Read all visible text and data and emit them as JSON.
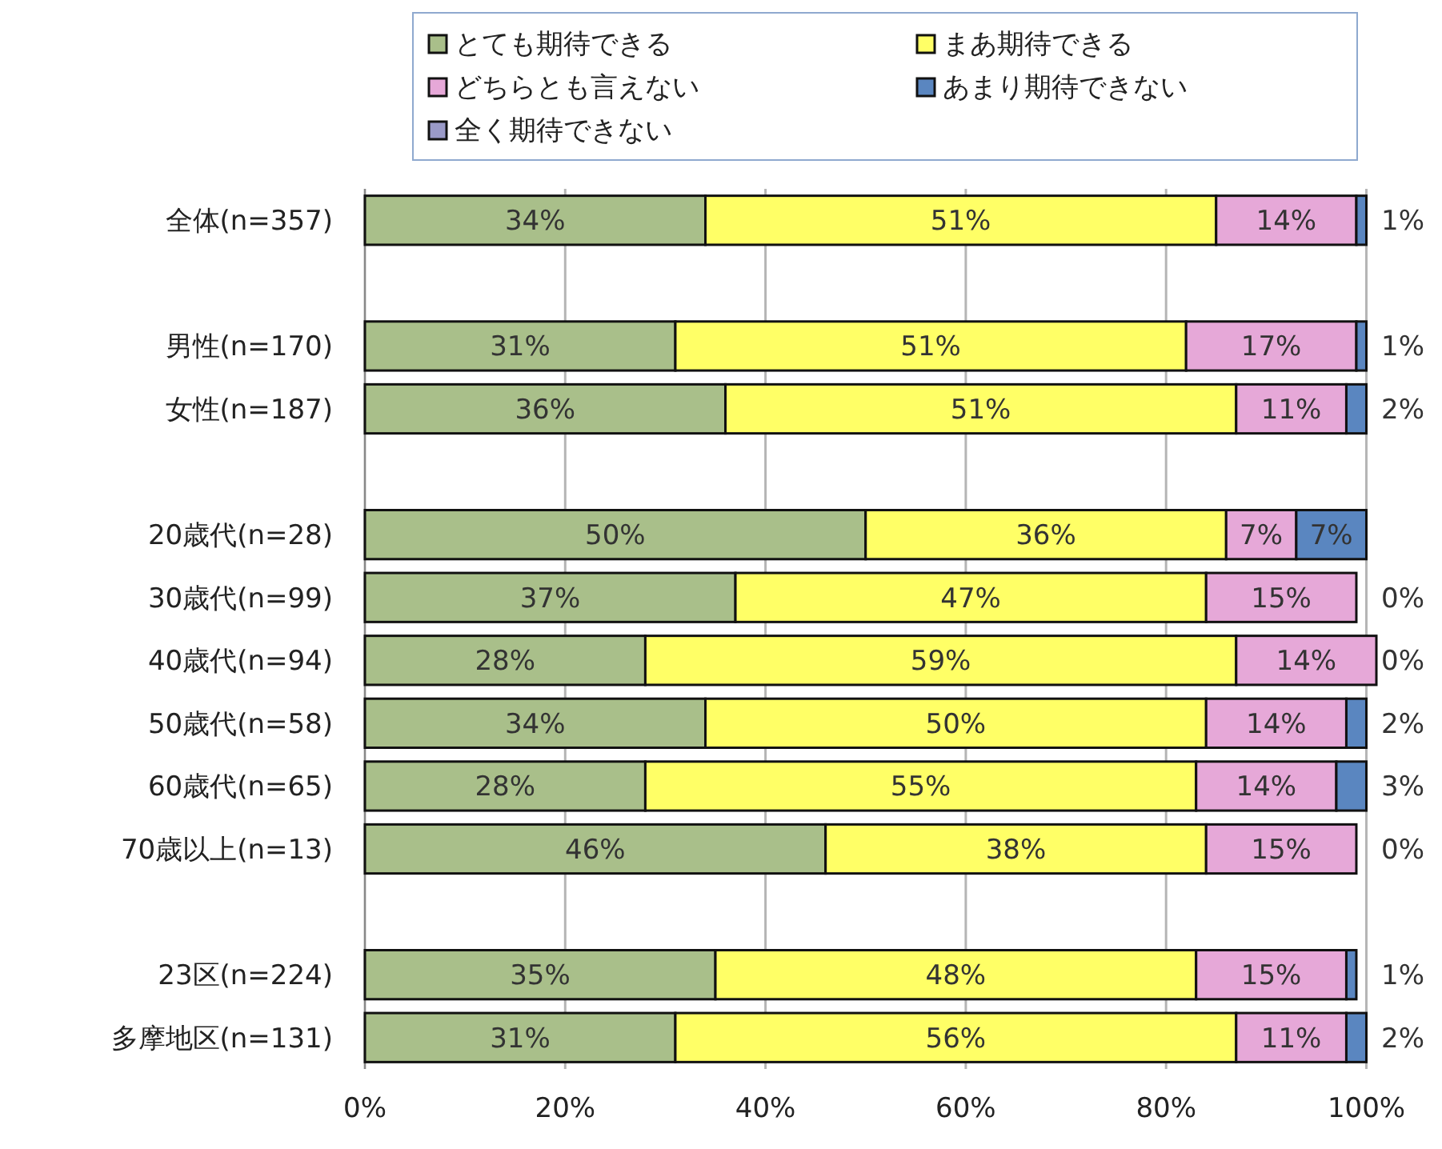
{
  "chart_data": {
    "type": "bar",
    "orientation": "horizontal",
    "stacked": true,
    "categories": [
      "全体(n=357)",
      null,
      "男性(n=170)",
      "女性(n=187)",
      null,
      "20歳代(n=28)",
      "30歳代(n=99)",
      "40歳代(n=94)",
      "50歳代(n=58)",
      "60歳代(n=65)",
      "70歳以上(n=13)",
      null,
      "23区(n=224)",
      "多摩地区(n=131)"
    ],
    "series": [
      {
        "name": "とても期待できる",
        "color": "#a9bf8a",
        "values": [
          34,
          null,
          31,
          36,
          null,
          50,
          37,
          28,
          34,
          28,
          46,
          null,
          35,
          31
        ],
        "value_labels": [
          "34%",
          null,
          "31%",
          "36%",
          null,
          "50%",
          "37%",
          "28%",
          "34%",
          "28%",
          "46%",
          null,
          "35%",
          "31%"
        ]
      },
      {
        "name": "まあ期待できる",
        "color": "#ffff66",
        "values": [
          51,
          null,
          51,
          51,
          null,
          36,
          47,
          59,
          50,
          55,
          38,
          null,
          48,
          56
        ],
        "value_labels": [
          "51%",
          null,
          "51%",
          "51%",
          null,
          "36%",
          "47%",
          "59%",
          "50%",
          "55%",
          "38%",
          null,
          "48%",
          "56%"
        ]
      },
      {
        "name": "どちらとも言えない",
        "color": "#e6a8d8",
        "values": [
          14,
          null,
          17,
          11,
          null,
          7,
          15,
          14,
          14,
          14,
          15,
          null,
          15,
          11
        ],
        "value_labels": [
          "14%",
          null,
          "17%",
          "11%",
          null,
          "7%",
          "15%",
          "14%",
          "14%",
          "14%",
          "15%",
          null,
          "15%",
          "11%"
        ]
      },
      {
        "name": "あまり期待できない",
        "color": "#5a86c0",
        "values": [
          1,
          null,
          1,
          2,
          null,
          7,
          0,
          0,
          2,
          3,
          0,
          null,
          1,
          2
        ],
        "value_labels": [
          "1%",
          null,
          "1%",
          "2%",
          null,
          "7%",
          "0%",
          "0%",
          "2%",
          "3%",
          "0%",
          null,
          "1%",
          "2%"
        ]
      },
      {
        "name": "全く期待できない",
        "color": "#9a9ac8",
        "values": [
          0,
          null,
          0,
          0,
          null,
          0,
          0,
          0,
          0,
          0,
          0,
          null,
          0,
          0
        ]
      }
    ],
    "xlim": [
      0,
      101
    ],
    "xticks": [
      {
        "value": 0,
        "label": "0%"
      },
      {
        "value": 20,
        "label": "20%"
      },
      {
        "value": 40,
        "label": "40%"
      },
      {
        "value": 60,
        "label": "60%"
      },
      {
        "value": 80,
        "label": "80%"
      },
      {
        "value": 100,
        "label": "100%"
      }
    ],
    "grid": "x",
    "legend": "top"
  }
}
